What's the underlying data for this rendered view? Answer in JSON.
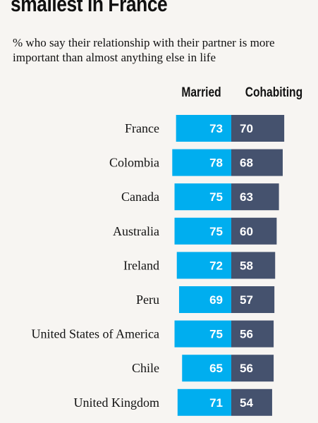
{
  "title": "smallest in France",
  "subtitle": "% who say their relationship with their partner is more important than almost anything else in life",
  "colors": {
    "married": "#00aeef",
    "cohabiting": "#45526e",
    "background": "#f7f5f2"
  },
  "chart_data": {
    "type": "bar",
    "orientation": "horizontal-diverging",
    "title": "smallest in France",
    "subtitle": "% who say their relationship with their partner is more important than almost anything else in life",
    "categories": [
      "France",
      "Colombia",
      "Canada",
      "Australia",
      "Ireland",
      "Peru",
      "United States of America",
      "Chile",
      "United Kingdom"
    ],
    "series": [
      {
        "name": "Married",
        "values": [
          73,
          78,
          75,
          75,
          72,
          69,
          75,
          65,
          71
        ]
      },
      {
        "name": "Cohabiting",
        "values": [
          70,
          68,
          63,
          60,
          58,
          57,
          56,
          56,
          54
        ]
      }
    ],
    "legend": "top"
  }
}
